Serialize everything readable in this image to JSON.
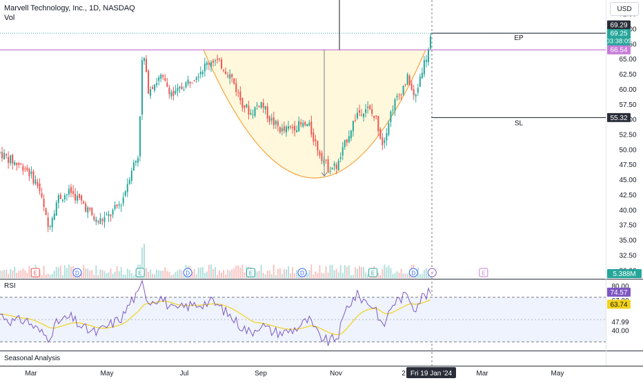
{
  "legend": {
    "symbol": "Marvell Technology, Inc., 1D, NASDAQ",
    "volume_label": "Vol"
  },
  "currency": "USD",
  "rsi_title": "RSI",
  "seasonal_label": "Seasonal Analysis",
  "colors": {
    "up": "#26a69a",
    "down": "#ef5350",
    "cup": "#f7a23b",
    "cup_fill": "#fff8dc",
    "resistance": "#c77dd8",
    "rsi": "#7e57c2",
    "rsi_ma": "#f2d21b",
    "rsi_band": "#eef3fd"
  },
  "chart_data": {
    "type": "candlestick",
    "y_ticks": [
      "72.50",
      "70.00",
      "67.50",
      "65.00",
      "62.50",
      "60.00",
      "57.50",
      "55.00",
      "52.50",
      "50.00",
      "47.50",
      "45.00",
      "42.50",
      "40.00",
      "37.50",
      "35.00",
      "32.50",
      "30.00"
    ],
    "ylim": [
      28.6,
      74.8
    ],
    "x_ticks": [
      "Mar",
      "May",
      "Jul",
      "Sep",
      "Nov",
      "Mar",
      "May"
    ],
    "x_tick_hidden": "2",
    "crosshair_date": "Fri 19 Jan '24",
    "price_labels": {
      "last_price": "69.29",
      "current_price": "69.25",
      "countdown": "03:38:09",
      "resistance": "66.54",
      "stop_loss": "55.32",
      "volume": "5.388M"
    },
    "annotations": {
      "entry": "EP",
      "stop": "SL"
    },
    "levels": {
      "resistance": 66.54,
      "entry": 69.29,
      "stop_loss": 55.32,
      "cup_bottom": 45.3
    },
    "rsi": {
      "y_ticks": [
        "80.00",
        "67.08",
        "47.99",
        "40.00"
      ],
      "ylim": [
        24,
        86
      ],
      "labels": {
        "value": "74.57",
        "ma": "63.74"
      },
      "band": [
        30,
        70
      ]
    },
    "events": [
      {
        "type": "E",
        "pos": 0.055
      },
      {
        "type": "D",
        "pos": 0.12
      },
      {
        "type": "E",
        "pos": 0.218
      },
      {
        "type": "D",
        "pos": 0.292
      },
      {
        "type": "E",
        "pos": 0.39
      },
      {
        "type": "D",
        "pos": 0.47
      },
      {
        "type": "E",
        "pos": 0.58
      },
      {
        "type": "D",
        "pos": 0.643
      },
      {
        "type": "bolt",
        "pos": 0.672
      },
      {
        "type": "E",
        "pos": 0.752
      }
    ],
    "price_path": [
      [
        0,
        49.5
      ],
      [
        0.02,
        48
      ],
      [
        0.04,
        47
      ],
      [
        0.06,
        44
      ],
      [
        0.075,
        37
      ],
      [
        0.09,
        42
      ],
      [
        0.11,
        43
      ],
      [
        0.13,
        41
      ],
      [
        0.15,
        38
      ],
      [
        0.17,
        39
      ],
      [
        0.19,
        41.5
      ],
      [
        0.205,
        47
      ],
      [
        0.215,
        49
      ],
      [
        0.222,
        67
      ],
      [
        0.23,
        60
      ],
      [
        0.25,
        62
      ],
      [
        0.27,
        59
      ],
      [
        0.29,
        61
      ],
      [
        0.31,
        63
      ],
      [
        0.33,
        65
      ],
      [
        0.345,
        64
      ],
      [
        0.36,
        62
      ],
      [
        0.375,
        58
      ],
      [
        0.39,
        56
      ],
      [
        0.405,
        58
      ],
      [
        0.42,
        55
      ],
      [
        0.44,
        53
      ],
      [
        0.46,
        54
      ],
      [
        0.48,
        54
      ],
      [
        0.495,
        50
      ],
      [
        0.51,
        47
      ],
      [
        0.525,
        47.3
      ],
      [
        0.54,
        52
      ],
      [
        0.555,
        56
      ],
      [
        0.57,
        57
      ],
      [
        0.585,
        55
      ],
      [
        0.595,
        51
      ],
      [
        0.61,
        57
      ],
      [
        0.625,
        60
      ],
      [
        0.635,
        62
      ],
      [
        0.645,
        58
      ],
      [
        0.655,
        63
      ],
      [
        0.665,
        66
      ],
      [
        0.672,
        69.3
      ]
    ],
    "rsi_path": [
      [
        0,
        55
      ],
      [
        0.02,
        48
      ],
      [
        0.04,
        50
      ],
      [
        0.06,
        40
      ],
      [
        0.075,
        34
      ],
      [
        0.09,
        48
      ],
      [
        0.11,
        52
      ],
      [
        0.13,
        42
      ],
      [
        0.15,
        38
      ],
      [
        0.17,
        45
      ],
      [
        0.19,
        52
      ],
      [
        0.205,
        68
      ],
      [
        0.215,
        72
      ],
      [
        0.222,
        85
      ],
      [
        0.23,
        66
      ],
      [
        0.25,
        70
      ],
      [
        0.27,
        58
      ],
      [
        0.29,
        62
      ],
      [
        0.31,
        64
      ],
      [
        0.33,
        66
      ],
      [
        0.345,
        60
      ],
      [
        0.36,
        52
      ],
      [
        0.375,
        44
      ],
      [
        0.39,
        38
      ],
      [
        0.405,
        46
      ],
      [
        0.42,
        40
      ],
      [
        0.44,
        38
      ],
      [
        0.46,
        42
      ],
      [
        0.48,
        50
      ],
      [
        0.495,
        36
      ],
      [
        0.51,
        30
      ],
      [
        0.525,
        34
      ],
      [
        0.54,
        62
      ],
      [
        0.555,
        72
      ],
      [
        0.57,
        66
      ],
      [
        0.585,
        60
      ],
      [
        0.595,
        42
      ],
      [
        0.61,
        64
      ],
      [
        0.625,
        70
      ],
      [
        0.635,
        72
      ],
      [
        0.645,
        60
      ],
      [
        0.655,
        70
      ],
      [
        0.665,
        73
      ],
      [
        0.672,
        74.6
      ]
    ]
  }
}
